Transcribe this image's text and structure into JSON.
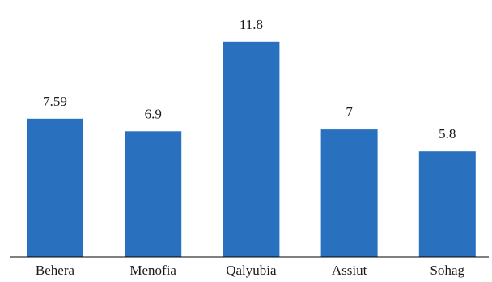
{
  "chart_data": {
    "type": "bar",
    "categories": [
      "Behera",
      "Menofia",
      "Qalyubia",
      "Assiut",
      "Sohag"
    ],
    "value_labels": [
      "7.59",
      "6.9",
      "11.8",
      "7",
      "5.8"
    ],
    "values": [
      7.59,
      6.9,
      11.8,
      7,
      5.8
    ],
    "ylim": [
      0,
      12.9
    ],
    "grid": false,
    "legend": "none",
    "bar_color": "#2970bf",
    "axis_color": "#000000"
  }
}
